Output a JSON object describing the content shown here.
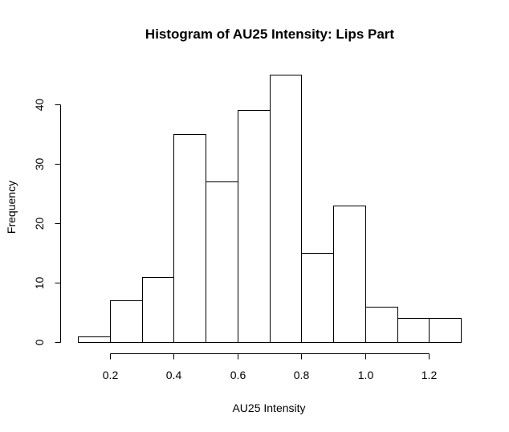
{
  "chart_data": {
    "type": "bar",
    "title": "Histogram of AU25 Intensity: Lips Part",
    "xlabel": "AU25 Intensity",
    "ylabel": "Frequency",
    "bin_edges": [
      0.1,
      0.2,
      0.3,
      0.4,
      0.5,
      0.6,
      0.7,
      0.8,
      0.9,
      1.0,
      1.1,
      1.2,
      1.3
    ],
    "values": [
      1,
      7,
      11,
      35,
      27,
      39,
      45,
      15,
      23,
      6,
      4,
      4
    ],
    "xlim": [
      0.1,
      1.3
    ],
    "ylim": [
      0,
      45
    ],
    "x_ticks": [
      0.2,
      0.4,
      0.6,
      0.8,
      1.0,
      1.2
    ],
    "x_tick_labels": [
      "0.2",
      "0.4",
      "0.6",
      "0.8",
      "1.0",
      "1.2"
    ],
    "y_ticks": [
      0,
      10,
      20,
      30,
      40
    ],
    "y_tick_labels": [
      "0",
      "10",
      "20",
      "30",
      "40"
    ],
    "grid": false,
    "legend": "none"
  },
  "colors": {
    "bar_fill": "#ffffff",
    "bar_stroke": "#000000",
    "axis": "#000000",
    "text": "#000000",
    "background": "#ffffff"
  }
}
